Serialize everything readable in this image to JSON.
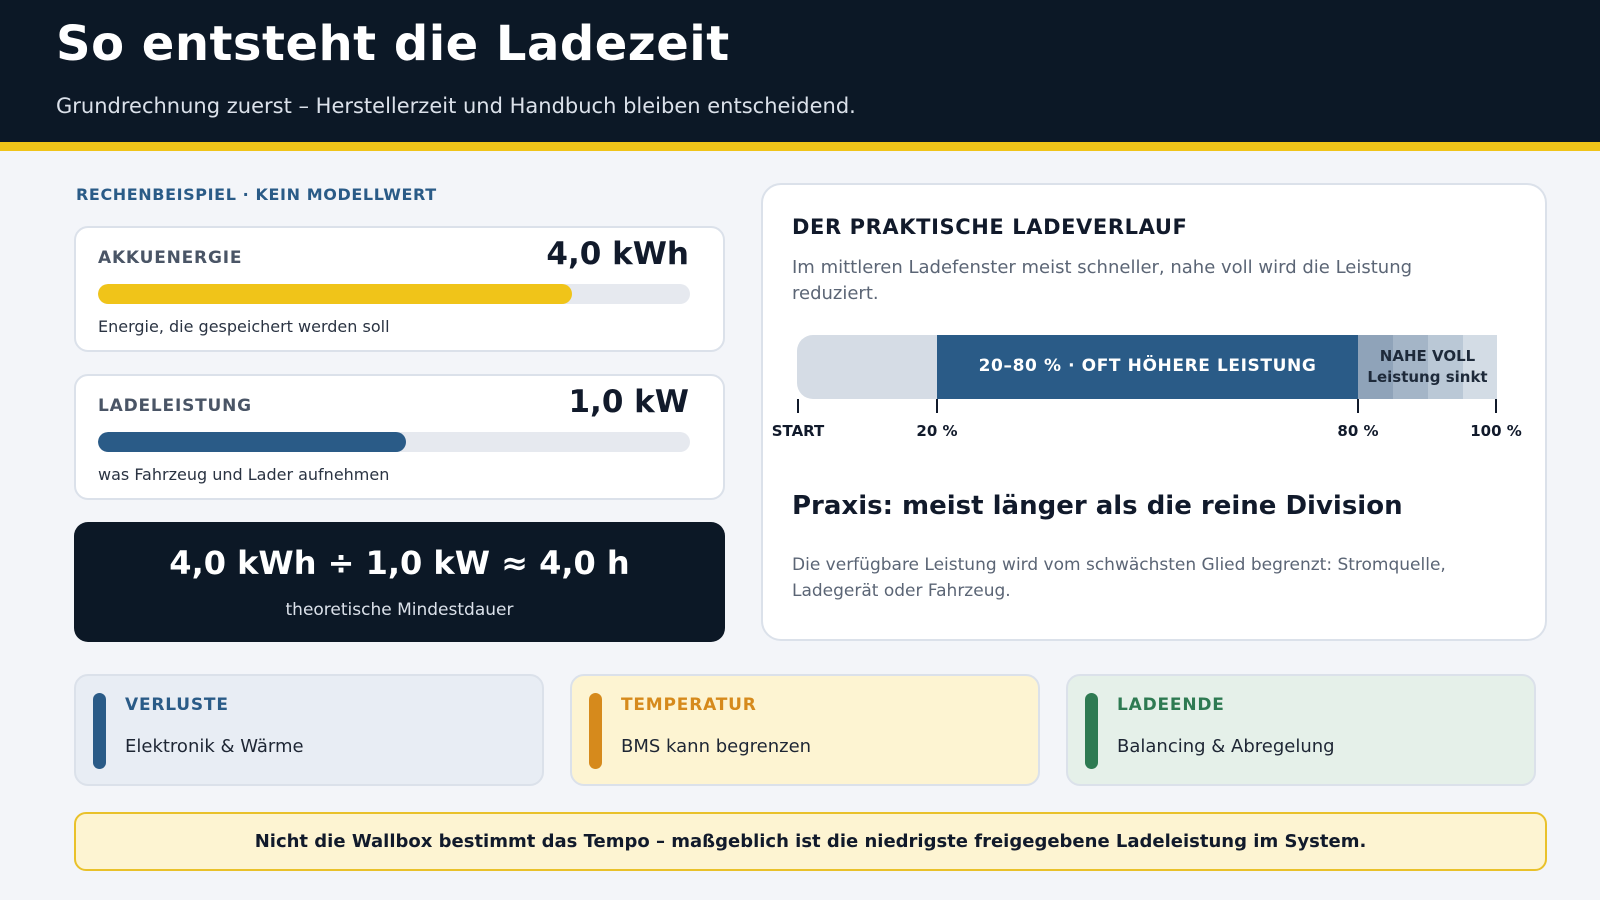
{
  "header": {
    "title": "So entsteht die Ladezeit",
    "subtitle": "Grundrechnung zuerst – Herstellerzeit und Handbuch bleiben entscheidend."
  },
  "example": {
    "section_label": "RECHENBEISPIEL · KEIN MODELLWERT",
    "energy": {
      "label": "AKKUENERGIE",
      "value": "4,0 kWh",
      "note": "Energie, die gespeichert werden soll",
      "fill_fraction": 0.8,
      "color": "#f0c419"
    },
    "power": {
      "label": "LADELEISTUNG",
      "value": "1,0 kW",
      "note": "was Fahrzeug und Lader aufnehmen",
      "fill_fraction": 0.52,
      "color": "#2a5b87"
    },
    "formula": {
      "text": "4,0 kWh ÷ 1,0 kW ≈ 4,0 h",
      "note": "theoretische Mindestdauer"
    }
  },
  "curve": {
    "title": "DER PRAKTISCHE LADEVERLAUF",
    "description": "Im mittleren Ladefenster meist schneller, nahe voll wird die Leistung reduziert.",
    "middle_label": "20–80 % · OFT HÖHERE LEISTUNG",
    "end_label_line1": "NAHE VOLL",
    "end_label_line2": "Leistung sinkt",
    "ticks": {
      "start": "START",
      "p20": "20 %",
      "p80": "80 %",
      "p100": "100 %"
    },
    "praxis_title": "Praxis: meist länger als die reine Division",
    "praxis_text": "Die verfügbare Leistung wird vom schwächsten Glied begrenzt: Stromquelle, Ladegerät oder Fahrzeug."
  },
  "factors": [
    {
      "label": "VERLUSTE",
      "text": "Elektronik & Wärme",
      "color": "#2a5b87",
      "icon": "vertical-bar-icon"
    },
    {
      "label": "TEMPERATUR",
      "text": "BMS kann begrenzen",
      "color": "#d68a1c",
      "icon": "vertical-bar-icon"
    },
    {
      "label": "LADEENDE",
      "text": "Balancing & Abregelung",
      "color": "#2e7a52",
      "icon": "vertical-bar-icon"
    }
  ],
  "conclusion": "Nicht die Wallbox bestimmt das Tempo – maßgeblich ist die niedrigste freigegebene Ladeleistung im System."
}
